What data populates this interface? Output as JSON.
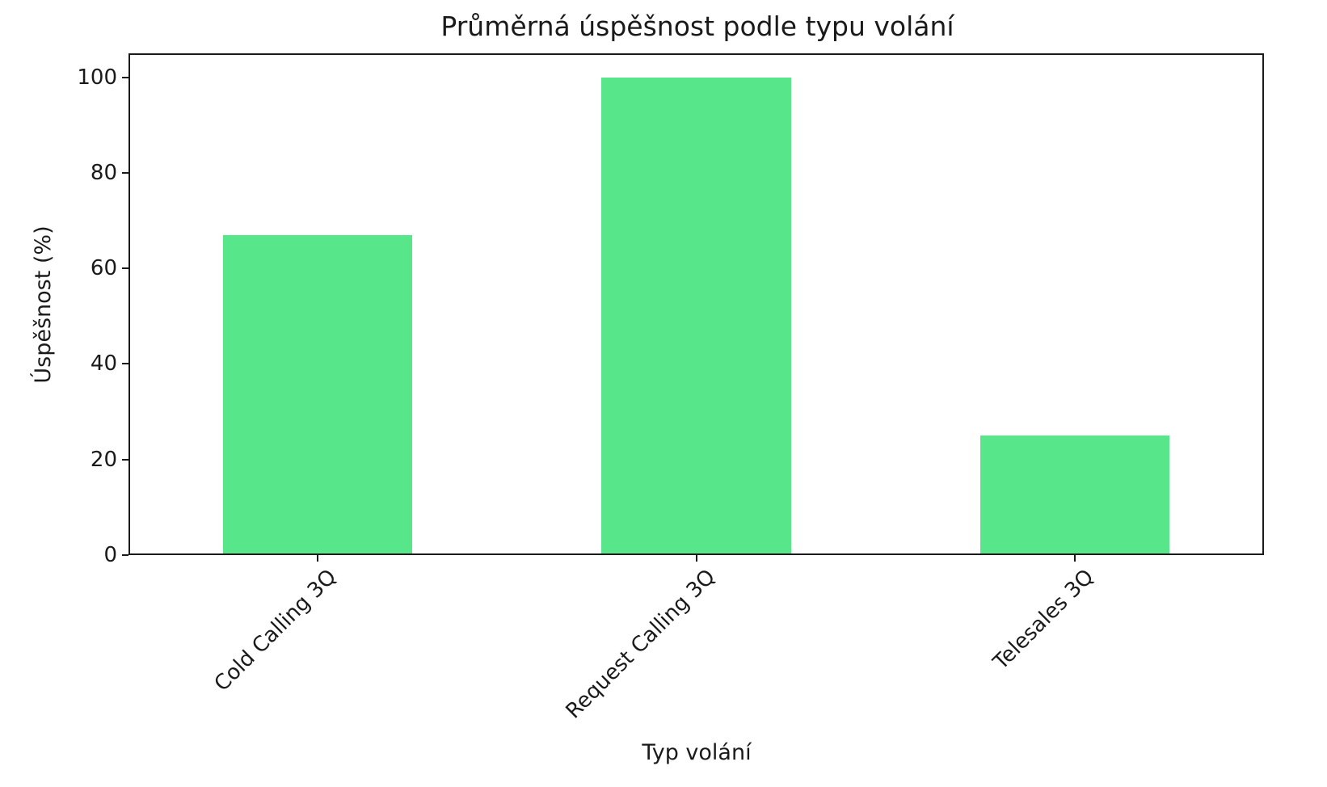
{
  "chart_data": {
    "type": "bar",
    "title": "Průměrná úspěšnost podle typu volání",
    "xlabel": "Typ volání",
    "ylabel": "Úspěšnost (%)",
    "categories": [
      "Cold Calling 3Q",
      "Request Calling 3Q",
      "Telesales 3Q"
    ],
    "values": [
      67,
      100,
      25
    ],
    "yticks": [
      0,
      20,
      40,
      60,
      80,
      100
    ],
    "ylim": [
      0,
      105
    ],
    "grid": false,
    "legend": "none",
    "bar_color": "#57e689",
    "axis_color": "#1a1a1a",
    "background_color": "#ffffff"
  }
}
